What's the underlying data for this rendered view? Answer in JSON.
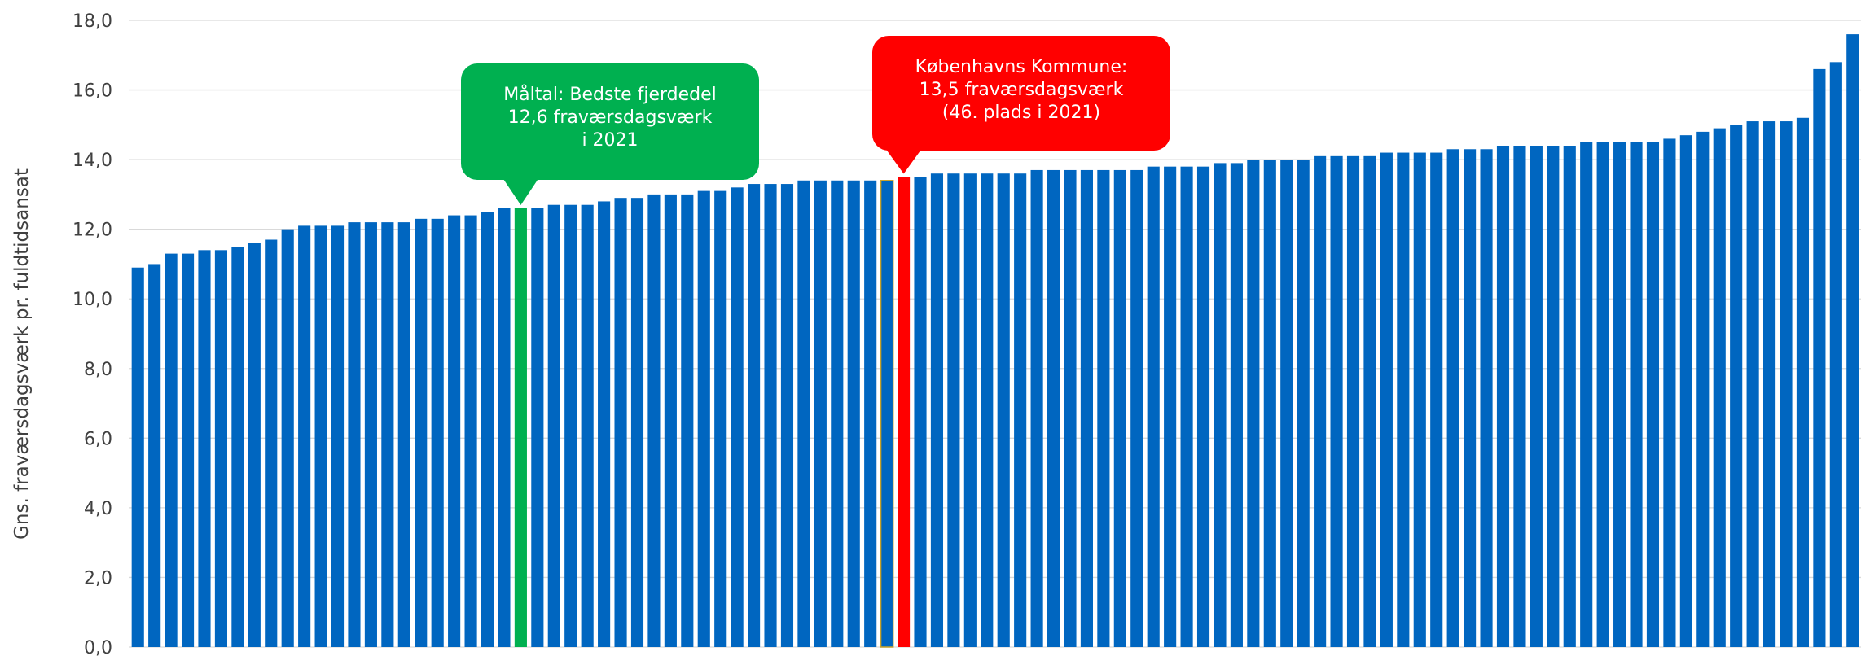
{
  "chart_data": {
    "type": "bar",
    "title": "",
    "ylabel": "Gns. fraværsdagsværk pr. fuldtidsansat",
    "xlabel": "",
    "ylim": [
      0,
      18
    ],
    "yticks": [
      "0,0",
      "2,0",
      "4,0",
      "6,0",
      "8,0",
      "10,0",
      "12,0",
      "14,0",
      "16,0",
      "18,0"
    ],
    "grid": true,
    "colors": {
      "bar": "#0066C0",
      "benchmark": "#00B050",
      "highlight": "#FF0000",
      "outline": "#C9A227",
      "grid": "#D9D9D9"
    },
    "benchmark_index": 23,
    "outline_index": 45,
    "highlight_index": 46,
    "values": [
      10.9,
      11.0,
      11.3,
      11.3,
      11.4,
      11.4,
      11.5,
      11.6,
      11.7,
      12.0,
      12.1,
      12.1,
      12.1,
      12.2,
      12.2,
      12.2,
      12.2,
      12.3,
      12.3,
      12.4,
      12.4,
      12.5,
      12.6,
      12.6,
      12.6,
      12.7,
      12.7,
      12.7,
      12.8,
      12.9,
      12.9,
      13.0,
      13.0,
      13.0,
      13.1,
      13.1,
      13.2,
      13.3,
      13.3,
      13.3,
      13.4,
      13.4,
      13.4,
      13.4,
      13.4,
      13.4,
      13.5,
      13.5,
      13.6,
      13.6,
      13.6,
      13.6,
      13.6,
      13.6,
      13.7,
      13.7,
      13.7,
      13.7,
      13.7,
      13.7,
      13.7,
      13.8,
      13.8,
      13.8,
      13.8,
      13.9,
      13.9,
      14.0,
      14.0,
      14.0,
      14.0,
      14.1,
      14.1,
      14.1,
      14.1,
      14.2,
      14.2,
      14.2,
      14.2,
      14.3,
      14.3,
      14.3,
      14.4,
      14.4,
      14.4,
      14.4,
      14.4,
      14.5,
      14.5,
      14.5,
      14.5,
      14.5,
      14.6,
      14.7,
      14.8,
      14.9,
      15.0,
      15.1,
      15.1,
      15.1,
      15.2,
      16.6,
      16.8,
      17.6
    ],
    "annotations": [
      {
        "lines": [
          "Måltal: Bedste fjerdedel",
          "12,6 fraværsdagsværk",
          "i 2021"
        ],
        "color": "#00B050",
        "target_index": 23
      },
      {
        "lines": [
          "Københavns Kommune:",
          "13,5 fraværsdagsværk",
          "(46. plads i 2021)"
        ],
        "color": "#FF0000",
        "target_index": 46
      }
    ]
  }
}
